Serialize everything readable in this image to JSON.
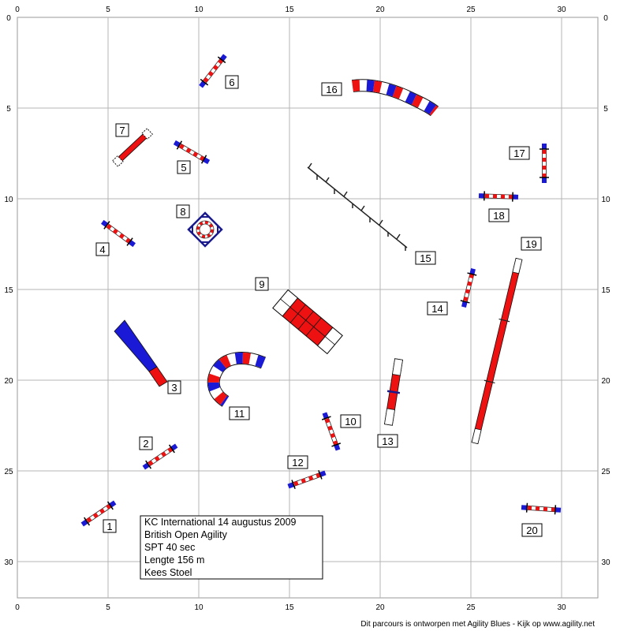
{
  "course": {
    "x_axis_ticks": [
      "0",
      "5",
      "10",
      "15",
      "20",
      "25",
      "30"
    ],
    "y_axis_ticks": [
      "0",
      "5",
      "10",
      "15",
      "20",
      "25",
      "30"
    ]
  },
  "obstacles": [
    {
      "number": "1",
      "type": "jump"
    },
    {
      "number": "2",
      "type": "jump"
    },
    {
      "number": "3",
      "type": "tunnel-chute"
    },
    {
      "number": "4",
      "type": "jump"
    },
    {
      "number": "5",
      "type": "jump"
    },
    {
      "number": "6",
      "type": "jump"
    },
    {
      "number": "7",
      "type": "wall"
    },
    {
      "number": "8",
      "type": "tyre"
    },
    {
      "number": "9",
      "type": "a-frame"
    },
    {
      "number": "10",
      "type": "jump"
    },
    {
      "number": "11",
      "type": "tunnel"
    },
    {
      "number": "12",
      "type": "jump"
    },
    {
      "number": "13",
      "type": "seesaw"
    },
    {
      "number": "14",
      "type": "jump"
    },
    {
      "number": "15",
      "type": "weave-poles"
    },
    {
      "number": "16",
      "type": "tunnel"
    },
    {
      "number": "17",
      "type": "jump"
    },
    {
      "number": "18",
      "type": "jump"
    },
    {
      "number": "19",
      "type": "dogwalk"
    },
    {
      "number": "20",
      "type": "jump"
    }
  ],
  "info": {
    "line1": "KC International 14 augustus 2009",
    "line2": "British Open Agility",
    "line3": "SPT 40 sec",
    "line4": "Lengte 156 m",
    "line5": "Kees Stoel"
  },
  "footer": "Dit parcours is ontworpen met Agility Blues - Kijk op www.agility.net",
  "colors": {
    "red": "#ee1111",
    "blue": "#1a1ad6",
    "navy": "#1a1a8c",
    "grid": "#b4b4b4"
  }
}
